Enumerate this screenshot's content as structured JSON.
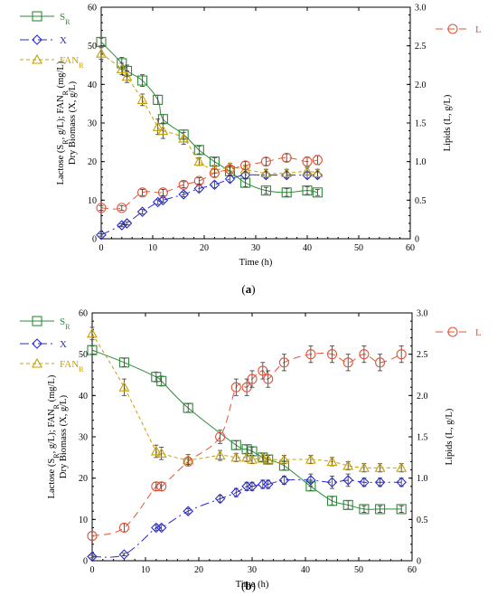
{
  "colors": {
    "S": "#2e8b3a",
    "X": "#2b2bcc",
    "FAN": "#c8a000",
    "L": "#e2553a"
  },
  "chart_data": [
    {
      "type": "scatter",
      "caption": {
        "open": "(",
        "letter": "a",
        "close": ")"
      },
      "xlabel": "Time (h)",
      "ylabel_left": "Lactose (S_R, g/L); FAN_R (mg/L)",
      "ylabel_left_line1": "Lactose (S",
      "ylabel_left_sub1": "R",
      "ylabel_left_mid": ", g/L); FAN",
      "ylabel_left_sub2": "R",
      "ylabel_left_end": " (mg/L)",
      "ylabel_left2": "Dry Biomass (X, g/L)",
      "ylabel_right": "Lipids (L, g/L)",
      "xlim": [
        0,
        60
      ],
      "ylim_left": [
        0,
        60
      ],
      "ylim_right": [
        0,
        3.0
      ],
      "xticks": [
        "0",
        "10",
        "20",
        "30",
        "40",
        "50",
        "60"
      ],
      "yticks_left": [
        "0",
        "10",
        "20",
        "30",
        "40",
        "50",
        "60"
      ],
      "yticks_right": [
        "0",
        "0.5",
        "1.0",
        "1.5",
        "2.0",
        "2.5",
        "3.0"
      ],
      "legend": [
        {
          "key": "S",
          "label": "S",
          "sub": "R"
        },
        {
          "key": "X",
          "label": "X",
          "sub": ""
        },
        {
          "key": "FAN",
          "label": "FAN",
          "sub": "R"
        },
        {
          "key": "L",
          "label": "L",
          "sub": ""
        }
      ],
      "series": [
        {
          "key": "S",
          "name": "S_R",
          "axis": "left",
          "marker": "square",
          "points": [
            [
              0,
              51
            ],
            [
              4,
              45.5
            ],
            [
              5,
              43.5
            ],
            [
              8,
              41
            ],
            [
              11,
              36
            ],
            [
              12,
              31
            ],
            [
              16,
              27
            ],
            [
              19,
              23
            ],
            [
              22,
              20
            ],
            [
              25,
              17.5
            ],
            [
              28,
              14.5
            ],
            [
              32,
              12.5
            ],
            [
              36,
              12
            ],
            [
              40,
              12.5
            ],
            [
              42,
              12
            ]
          ],
          "err": [
            1,
            1.5,
            1.5,
            1.5,
            1.2,
            1.2,
            1.2,
            1,
            1,
            1,
            1,
            0.8,
            1,
            1,
            0.8
          ]
        },
        {
          "key": "X",
          "name": "X",
          "axis": "left",
          "marker": "diamond",
          "points": [
            [
              0,
              1
            ],
            [
              4,
              3.5
            ],
            [
              5,
              4
            ],
            [
              8,
              7
            ],
            [
              11,
              9.5
            ],
            [
              12,
              10
            ],
            [
              16,
              11.5
            ],
            [
              19,
              13
            ],
            [
              22,
              14
            ],
            [
              25,
              15.5
            ],
            [
              28,
              16.5
            ],
            [
              32,
              16.5
            ],
            [
              36,
              16.5
            ],
            [
              40,
              16.5
            ],
            [
              42,
              16.5
            ]
          ],
          "err": [
            0.3,
            0.4,
            0.4,
            0.6,
            0.6,
            0.6,
            0.6,
            0.8,
            0.8,
            0.8,
            0.8,
            0.8,
            0.8,
            0.8,
            0.8
          ]
        },
        {
          "key": "FAN",
          "name": "FAN_R",
          "axis": "left",
          "marker": "triangle",
          "points": [
            [
              0,
              48
            ],
            [
              4,
              44
            ],
            [
              5,
              42
            ],
            [
              8,
              36
            ],
            [
              11,
              29
            ],
            [
              12,
              28
            ],
            [
              16,
              26
            ],
            [
              19,
              20
            ],
            [
              22,
              18
            ],
            [
              25,
              18.5
            ],
            [
              28,
              18
            ],
            [
              32,
              17
            ],
            [
              36,
              17
            ],
            [
              40,
              17.5
            ],
            [
              42,
              17
            ]
          ],
          "err": [
            1.5,
            1.5,
            1.5,
            1.5,
            2,
            2,
            1.5,
            1,
            1,
            1,
            1,
            1,
            1,
            1,
            1
          ]
        },
        {
          "key": "L",
          "name": "L",
          "axis": "right",
          "marker": "circle",
          "points": [
            [
              0,
              0.4
            ],
            [
              4,
              0.4
            ],
            [
              8,
              0.6
            ],
            [
              12,
              0.6
            ],
            [
              16,
              0.7
            ],
            [
              19,
              0.75
            ],
            [
              22,
              0.85
            ],
            [
              25,
              0.9
            ],
            [
              28,
              0.95
            ],
            [
              32,
              1.0
            ],
            [
              36,
              1.05
            ],
            [
              40,
              1.0
            ],
            [
              42,
              1.02
            ]
          ],
          "err": [
            0.03,
            0.03,
            0.04,
            0.04,
            0.04,
            0.04,
            0.05,
            0.05,
            0.05,
            0.05,
            0.05,
            0.06,
            0.06
          ]
        }
      ]
    },
    {
      "type": "scatter",
      "caption": {
        "open": "(",
        "letter": "b",
        "close": ")"
      },
      "xlabel": "Time (h)",
      "ylabel_left": "Lactose (S_R, g/L); FAN_R (mg/L)",
      "ylabel_left_line1": "Lactose (S",
      "ylabel_left_sub1": "R",
      "ylabel_left_mid": ", g/L); FAN",
      "ylabel_left_sub2": "R",
      "ylabel_left_end": " (mg/L)",
      "ylabel_left2": "Dry Biomass (X, g/L)",
      "ylabel_right": "Lipids (L, g/L)",
      "xlim": [
        0,
        60
      ],
      "ylim_left": [
        0,
        60
      ],
      "ylim_right": [
        0,
        3.0
      ],
      "xticks": [
        "0",
        "10",
        "20",
        "30",
        "40",
        "50",
        "60"
      ],
      "yticks_left": [
        "0",
        "10",
        "20",
        "30",
        "40",
        "50",
        "60"
      ],
      "yticks_right": [
        "0",
        "0.5",
        "1.0",
        "1.5",
        "2.0",
        "2.5",
        "3.0"
      ],
      "legend": [
        {
          "key": "S",
          "label": "S",
          "sub": "R"
        },
        {
          "key": "X",
          "label": "X",
          "sub": ""
        },
        {
          "key": "FAN",
          "label": "FAN",
          "sub": "R"
        },
        {
          "key": "L",
          "label": "L",
          "sub": ""
        }
      ],
      "series": [
        {
          "key": "S",
          "name": "S_R",
          "axis": "left",
          "marker": "square",
          "points": [
            [
              0,
              51
            ],
            [
              6,
              48
            ],
            [
              12,
              44.5
            ],
            [
              13,
              43.5
            ],
            [
              18,
              37
            ],
            [
              27,
              28
            ],
            [
              29,
              27
            ],
            [
              30,
              26.5
            ],
            [
              32,
              25
            ],
            [
              33,
              24.5
            ],
            [
              36,
              23
            ],
            [
              41,
              18
            ],
            [
              45,
              14.5
            ],
            [
              48,
              13.5
            ],
            [
              51,
              12.5
            ],
            [
              54,
              12.5
            ],
            [
              58,
              12.5
            ]
          ],
          "err": [
            1,
            1,
            1.2,
            1.2,
            1,
            1,
            1,
            1,
            1,
            1,
            1,
            1,
            1,
            1,
            0.8,
            0.8,
            0.8
          ]
        },
        {
          "key": "X",
          "name": "X",
          "axis": "left",
          "marker": "diamond",
          "points": [
            [
              0,
              1
            ],
            [
              6,
              1.5
            ],
            [
              12,
              8
            ],
            [
              13,
              8
            ],
            [
              18,
              12
            ],
            [
              24,
              15
            ],
            [
              27,
              16.5
            ],
            [
              29,
              18
            ],
            [
              30,
              18
            ],
            [
              32,
              18.5
            ],
            [
              33,
              18.5
            ],
            [
              36,
              19.5
            ],
            [
              41,
              19.5
            ],
            [
              45,
              19
            ],
            [
              48,
              19.5
            ],
            [
              51,
              19
            ],
            [
              54,
              19
            ],
            [
              58,
              19
            ]
          ],
          "err": [
            0.3,
            0.3,
            0.6,
            0.6,
            0.6,
            0.8,
            1,
            1,
            1,
            1,
            1,
            1,
            1.5,
            1.5,
            1.5,
            1,
            1,
            1
          ]
        },
        {
          "key": "FAN",
          "name": "FAN_R",
          "axis": "left",
          "marker": "triangle",
          "points": [
            [
              0,
              55
            ],
            [
              6,
              42
            ],
            [
              12,
              26.5
            ],
            [
              13,
              26
            ],
            [
              18,
              24.5
            ],
            [
              24,
              25.5
            ],
            [
              27,
              25
            ],
            [
              29,
              25
            ],
            [
              30,
              24.5
            ],
            [
              32,
              25
            ],
            [
              33,
              24.5
            ],
            [
              36,
              24.5
            ],
            [
              41,
              24.5
            ],
            [
              45,
              24
            ],
            [
              48,
              23
            ],
            [
              51,
              22.5
            ],
            [
              54,
              22.5
            ],
            [
              58,
              22.5
            ]
          ],
          "err": [
            1.5,
            2,
            1.5,
            1.5,
            1.2,
            1.2,
            1,
            1,
            1,
            1,
            1,
            1,
            1,
            1,
            1,
            1,
            1,
            1
          ]
        },
        {
          "key": "L",
          "name": "L",
          "axis": "right",
          "marker": "circle",
          "points": [
            [
              0,
              0.3
            ],
            [
              6,
              0.4
            ],
            [
              12,
              0.9
            ],
            [
              13,
              0.9
            ],
            [
              18,
              1.2
            ],
            [
              24,
              1.5
            ],
            [
              27,
              2.1
            ],
            [
              29,
              2.1
            ],
            [
              30,
              2.2
            ],
            [
              32,
              2.3
            ],
            [
              33,
              2.2
            ],
            [
              36,
              2.4
            ],
            [
              41,
              2.5
            ],
            [
              45,
              2.5
            ],
            [
              48,
              2.4
            ],
            [
              51,
              2.5
            ],
            [
              54,
              2.4
            ],
            [
              58,
              2.5
            ]
          ],
          "err": [
            0.05,
            0.05,
            0.05,
            0.05,
            0.05,
            0.08,
            0.1,
            0.1,
            0.1,
            0.1,
            0.1,
            0.1,
            0.1,
            0.1,
            0.1,
            0.1,
            0.1,
            0.1
          ]
        }
      ]
    }
  ]
}
